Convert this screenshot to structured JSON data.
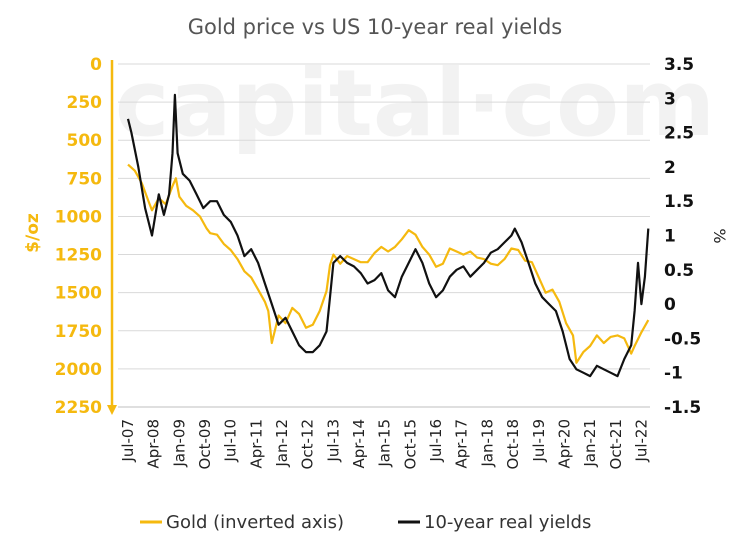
{
  "chart_data": {
    "type": "line",
    "title": "Gold price vs US 10-year real yields",
    "watermark": "capital·com",
    "colors": {
      "gold": "#f5b90f",
      "yields": "#111111",
      "grid": "#d9d9d9"
    },
    "left_axis": {
      "label": "$/oz",
      "inverted": true,
      "range": [
        0,
        2250
      ],
      "ticks": [
        "0",
        "250",
        "500",
        "750",
        "1000",
        "1250",
        "1500",
        "1750",
        "2000",
        "2250"
      ],
      "tick_values": [
        0,
        250,
        500,
        750,
        1000,
        1250,
        1500,
        1750,
        2000,
        2250
      ]
    },
    "right_axis": {
      "label": "%",
      "range": [
        -1.5,
        3.5
      ],
      "ticks": [
        "3.5",
        "3",
        "2.5",
        "2",
        "1.5",
        "1",
        "0.5",
        "0",
        "-0.5",
        "-1",
        "-1.5"
      ],
      "tick_values": [
        3.5,
        3,
        2.5,
        2,
        1.5,
        1,
        0.5,
        0,
        -0.5,
        -1,
        -1.5
      ]
    },
    "x_axis": {
      "range": [
        2007.5,
        2022.75
      ],
      "ticks": [
        "Jul-07",
        "Apr-08",
        "Jan-09",
        "Oct-09",
        "Jul-10",
        "Apr-11",
        "Jan-12",
        "Oct-12",
        "Jul-13",
        "Apr-14",
        "Jan-15",
        "Oct-15",
        "Jul-16",
        "Apr-17",
        "Jan-18",
        "Oct-18",
        "Jul-19",
        "Apr-20",
        "Jan-21",
        "Oct-21",
        "Jul-22"
      ],
      "tick_values": [
        2007.5,
        2008.25,
        2009.0,
        2009.75,
        2010.5,
        2011.25,
        2012.0,
        2012.75,
        2013.5,
        2014.25,
        2015.0,
        2015.75,
        2016.5,
        2017.25,
        2018.0,
        2018.75,
        2019.5,
        2020.25,
        2021.0,
        2021.75,
        2022.5
      ]
    },
    "legend": {
      "position": "bottom",
      "gold_label": "Gold (inverted axis)",
      "yields_label": "10-year real yields"
    },
    "grid": "horizontal",
    "series": [
      {
        "name": "Gold (inverted axis)",
        "axis": "left",
        "x": [
          2007.5,
          2007.7,
          2007.9,
          2008.1,
          2008.2,
          2008.4,
          2008.6,
          2008.8,
          2008.9,
          2009.0,
          2009.2,
          2009.4,
          2009.6,
          2009.8,
          2009.9,
          2010.1,
          2010.3,
          2010.5,
          2010.7,
          2010.9,
          2011.1,
          2011.3,
          2011.5,
          2011.6,
          2011.7,
          2011.9,
          2012.1,
          2012.3,
          2012.5,
          2012.7,
          2012.9,
          2013.1,
          2013.3,
          2013.4,
          2013.5,
          2013.7,
          2013.9,
          2014.1,
          2014.3,
          2014.5,
          2014.7,
          2014.9,
          2015.1,
          2015.3,
          2015.5,
          2015.7,
          2015.9,
          2016.1,
          2016.3,
          2016.5,
          2016.7,
          2016.9,
          2017.1,
          2017.3,
          2017.5,
          2017.7,
          2017.9,
          2018.1,
          2018.3,
          2018.5,
          2018.7,
          2018.9,
          2019.1,
          2019.3,
          2019.5,
          2019.7,
          2019.9,
          2020.1,
          2020.3,
          2020.5,
          2020.6,
          2020.8,
          2021.0,
          2021.2,
          2021.4,
          2021.6,
          2021.8,
          2022.0,
          2022.2,
          2022.3,
          2022.5,
          2022.7
        ],
        "values": [
          660,
          700,
          780,
          900,
          960,
          880,
          920,
          800,
          750,
          870,
          930,
          960,
          1000,
          1080,
          1110,
          1120,
          1180,
          1220,
          1280,
          1360,
          1400,
          1480,
          1560,
          1620,
          1830,
          1650,
          1700,
          1600,
          1640,
          1730,
          1710,
          1620,
          1490,
          1320,
          1250,
          1310,
          1260,
          1280,
          1300,
          1300,
          1240,
          1200,
          1230,
          1200,
          1150,
          1090,
          1120,
          1200,
          1250,
          1330,
          1310,
          1210,
          1230,
          1250,
          1230,
          1270,
          1280,
          1310,
          1320,
          1280,
          1210,
          1220,
          1290,
          1300,
          1400,
          1500,
          1480,
          1560,
          1700,
          1780,
          1960,
          1890,
          1850,
          1780,
          1830,
          1790,
          1780,
          1800,
          1900,
          1850,
          1760,
          1680
        ]
      },
      {
        "name": "10-year real yields",
        "axis": "right",
        "x": [
          2007.5,
          2007.6,
          2007.8,
          2008.0,
          2008.2,
          2008.4,
          2008.55,
          2008.7,
          2008.8,
          2008.87,
          2008.95,
          2009.1,
          2009.3,
          2009.5,
          2009.7,
          2009.9,
          2010.1,
          2010.3,
          2010.5,
          2010.7,
          2010.9,
          2011.1,
          2011.3,
          2011.5,
          2011.7,
          2011.9,
          2012.1,
          2012.3,
          2012.5,
          2012.7,
          2012.9,
          2013.1,
          2013.3,
          2013.4,
          2013.5,
          2013.7,
          2013.9,
          2014.1,
          2014.3,
          2014.5,
          2014.7,
          2014.9,
          2015.1,
          2015.3,
          2015.5,
          2015.7,
          2015.9,
          2016.1,
          2016.3,
          2016.5,
          2016.7,
          2016.9,
          2017.1,
          2017.3,
          2017.5,
          2017.7,
          2017.9,
          2018.1,
          2018.3,
          2018.5,
          2018.7,
          2018.8,
          2019.0,
          2019.2,
          2019.4,
          2019.6,
          2019.8,
          2020.0,
          2020.2,
          2020.4,
          2020.6,
          2020.8,
          2021.0,
          2021.2,
          2021.4,
          2021.6,
          2021.8,
          2022.0,
          2022.2,
          2022.3,
          2022.4,
          2022.5,
          2022.6,
          2022.7
        ],
        "values": [
          2.7,
          2.5,
          2.0,
          1.4,
          1.0,
          1.6,
          1.3,
          1.6,
          2.2,
          3.05,
          2.2,
          1.9,
          1.8,
          1.6,
          1.4,
          1.5,
          1.5,
          1.3,
          1.2,
          1.0,
          0.7,
          0.8,
          0.6,
          0.3,
          0.0,
          -0.3,
          -0.2,
          -0.4,
          -0.6,
          -0.7,
          -0.7,
          -0.6,
          -0.4,
          0.1,
          0.6,
          0.7,
          0.6,
          0.55,
          0.45,
          0.3,
          0.35,
          0.45,
          0.2,
          0.1,
          0.4,
          0.6,
          0.8,
          0.6,
          0.3,
          0.1,
          0.2,
          0.4,
          0.5,
          0.55,
          0.4,
          0.5,
          0.6,
          0.75,
          0.8,
          0.9,
          1.0,
          1.1,
          0.9,
          0.6,
          0.3,
          0.1,
          0.0,
          -0.1,
          -0.4,
          -0.8,
          -0.95,
          -1.0,
          -1.05,
          -0.9,
          -0.95,
          -1.0,
          -1.05,
          -0.8,
          -0.6,
          -0.1,
          0.6,
          0.0,
          0.4,
          1.1
        ]
      }
    ]
  }
}
